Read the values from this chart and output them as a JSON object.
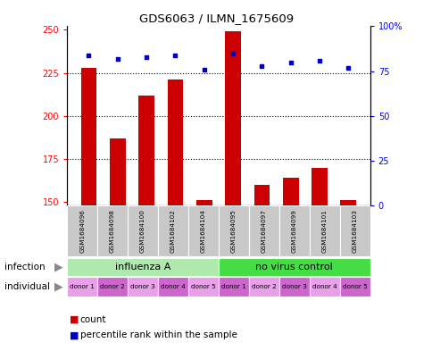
{
  "title": "GDS6063 / ILMN_1675609",
  "samples": [
    "GSM1684096",
    "GSM1684098",
    "GSM1684100",
    "GSM1684102",
    "GSM1684104",
    "GSM1684095",
    "GSM1684097",
    "GSM1684099",
    "GSM1684101",
    "GSM1684103"
  ],
  "counts": [
    228,
    187,
    212,
    221,
    151,
    249,
    160,
    164,
    170,
    151
  ],
  "percentile_ranks": [
    84,
    82,
    83,
    84,
    76,
    85,
    78,
    80,
    81,
    77
  ],
  "ylim_left": [
    148,
    252
  ],
  "ylim_right": [
    0,
    100
  ],
  "yticks_left": [
    150,
    175,
    200,
    225,
    250
  ],
  "yticks_right": [
    0,
    25,
    50,
    75,
    100
  ],
  "ytick_right_labels": [
    "0",
    "25",
    "50",
    "75",
    "100%"
  ],
  "infection_groups": [
    {
      "label": "influenza A",
      "start": 0,
      "end": 5,
      "color": "#AEEAAE"
    },
    {
      "label": "no virus control",
      "start": 5,
      "end": 10,
      "color": "#44DD44"
    }
  ],
  "donors": [
    "donor 1",
    "donor 2",
    "donor 3",
    "donor 4",
    "donor 5",
    "donor 1",
    "donor 2",
    "donor 3",
    "donor 4",
    "donor 5"
  ],
  "donor_bg_odd": "#E8A0E8",
  "donor_bg_even": "#CC66CC",
  "bar_color": "#CC0000",
  "dot_color": "#0000BB",
  "bar_width": 0.55,
  "baseline": 148,
  "grid_yticks": [
    175,
    200,
    225
  ],
  "grid_color": "black",
  "sample_bg": "#C8C8C8",
  "label_count": "count",
  "label_percentile": "percentile rank within the sample",
  "infection_label": "infection",
  "individual_label": "individual"
}
